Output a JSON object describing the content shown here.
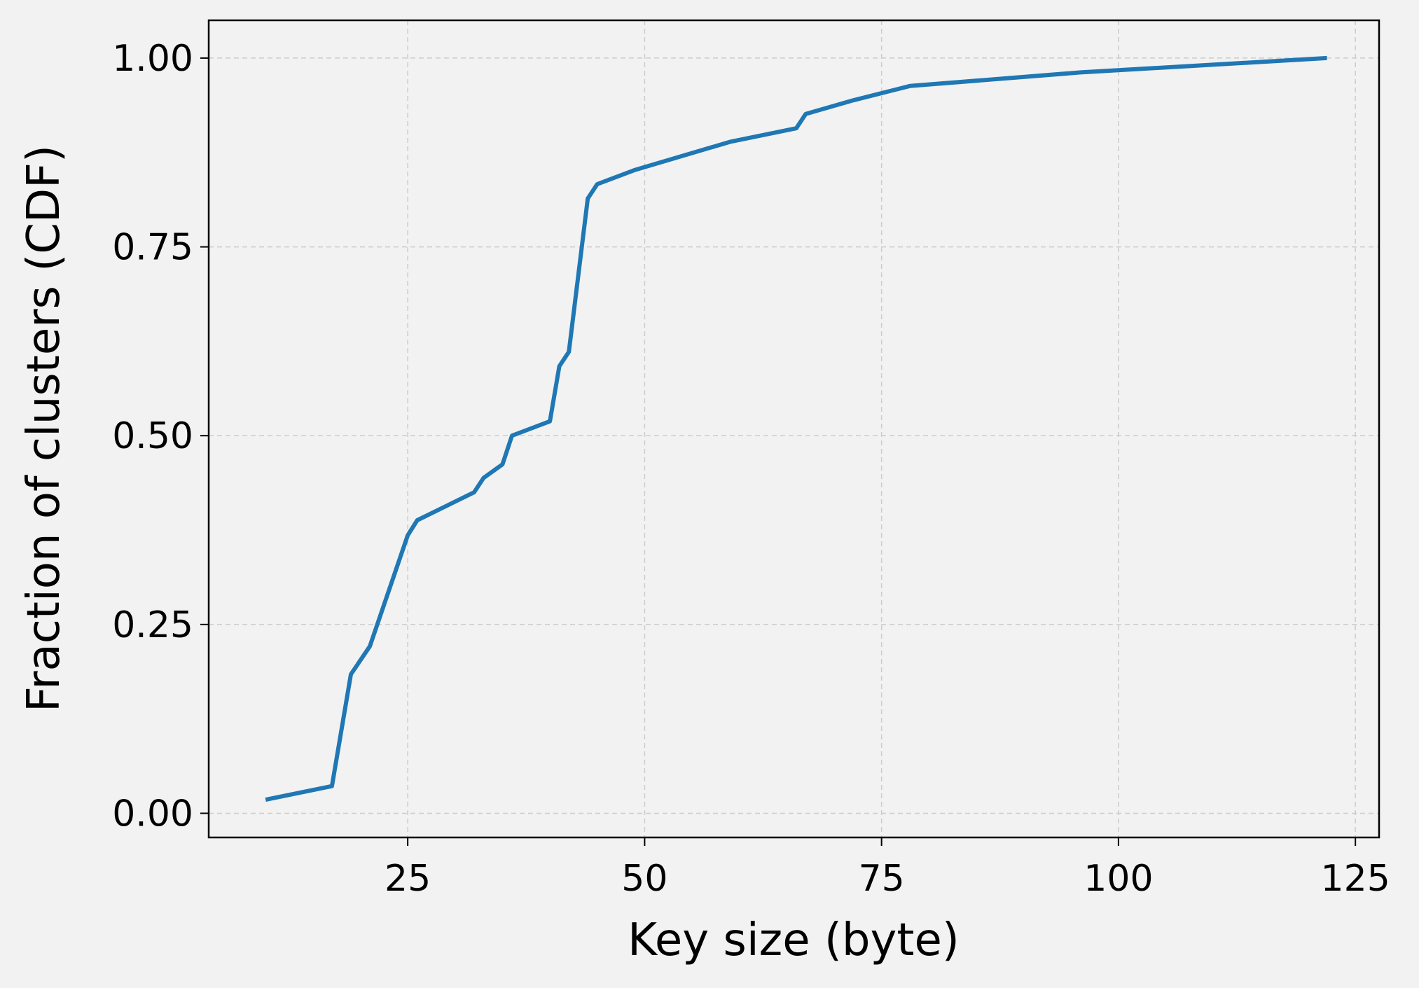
{
  "chart_data": {
    "type": "line",
    "title": "",
    "xlabel": "Key size (byte)",
    "ylabel": "Fraction of clusters (CDF)",
    "xlim": [
      4,
      127.5
    ],
    "ylim": [
      -0.032,
      1.05
    ],
    "xticks": [
      25,
      50,
      75,
      100,
      125
    ],
    "xtick_labels": [
      "25",
      "50",
      "75",
      "100",
      "125"
    ],
    "yticks": [
      0.0,
      0.25,
      0.5,
      0.75,
      1.0
    ],
    "ytick_labels": [
      "0.00",
      "0.25",
      "0.50",
      "0.75",
      "1.00"
    ],
    "grid": true,
    "legend": "none",
    "series": [
      {
        "color": "#1f77b4",
        "x": [
          10,
          17,
          19,
          21,
          25,
          26,
          32,
          33,
          35,
          36,
          40,
          41,
          42,
          44,
          45,
          49,
          59,
          66,
          67,
          72,
          78,
          96,
          122
        ],
        "y": [
          0.018,
          0.036,
          0.184,
          0.221,
          0.368,
          0.388,
          0.425,
          0.444,
          0.462,
          0.5,
          0.519,
          0.592,
          0.611,
          0.814,
          0.833,
          0.852,
          0.889,
          0.907,
          0.926,
          0.944,
          0.963,
          0.981,
          1.0
        ]
      }
    ]
  }
}
